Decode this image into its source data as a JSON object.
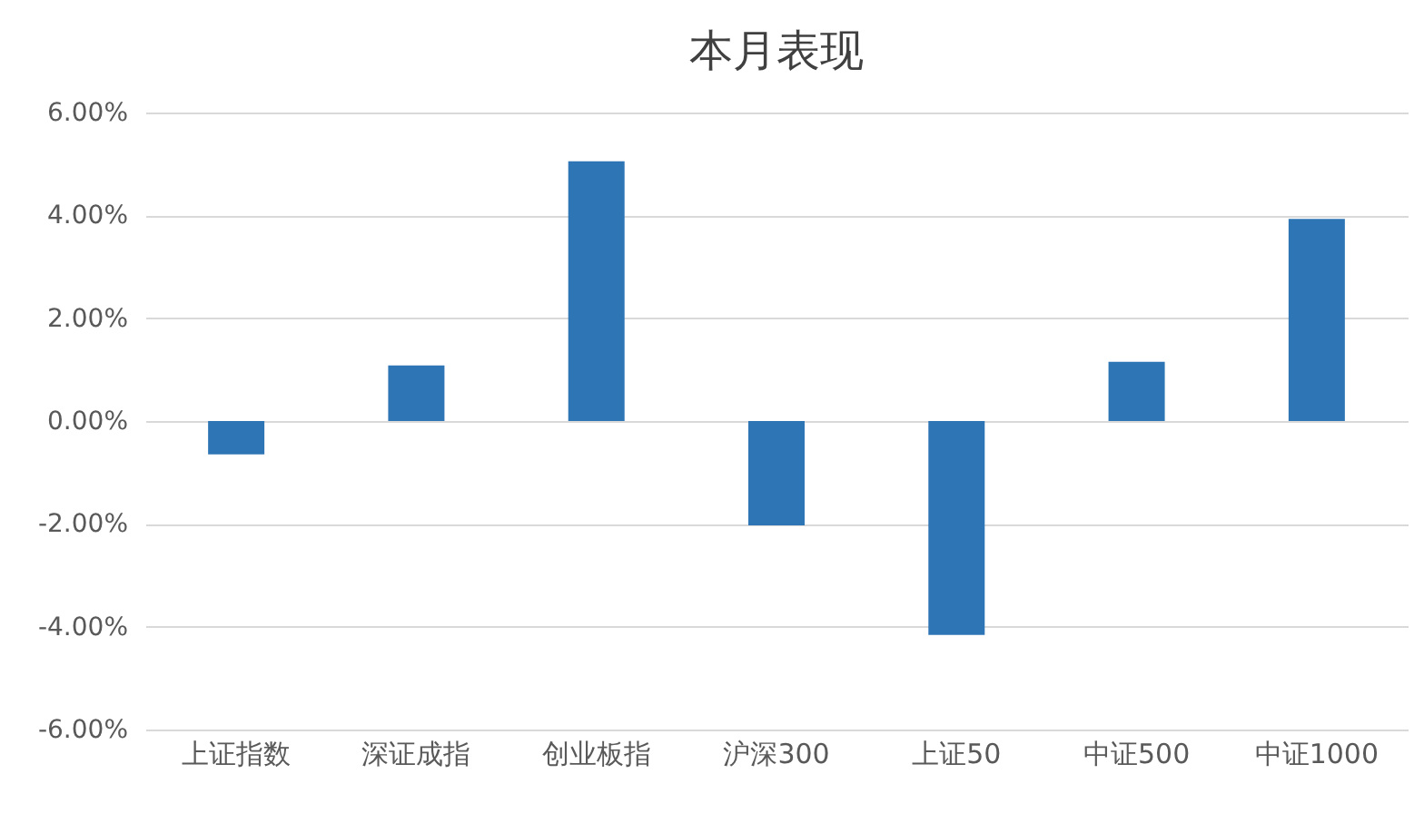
{
  "chart_data": {
    "type": "bar",
    "title": "本月表现",
    "categories": [
      "上证指数",
      "深证成指",
      "创业板指",
      "沪深300",
      "上证50",
      "中证500",
      "中证1000"
    ],
    "values": [
      -0.65,
      1.08,
      5.05,
      -2.03,
      -4.16,
      1.15,
      3.93
    ],
    "color": "#2e75b6",
    "ylim": [
      -6,
      6
    ],
    "yticks": [
      {
        "value": -6,
        "label": "-6.00%"
      },
      {
        "value": -4,
        "label": "-4.00%"
      },
      {
        "value": -2,
        "label": "-2.00%"
      },
      {
        "value": 0,
        "label": "0.00%"
      },
      {
        "value": 2,
        "label": "2.00%"
      },
      {
        "value": 4,
        "label": "4.00%"
      },
      {
        "value": 6,
        "label": "6.00%"
      }
    ],
    "grid": "y"
  }
}
